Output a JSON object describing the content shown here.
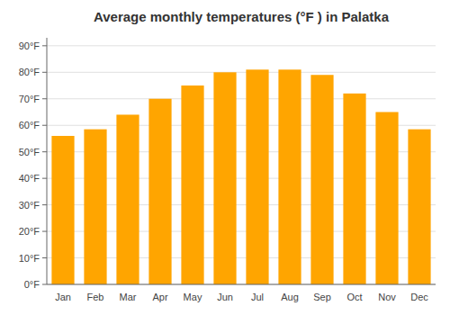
{
  "chart_data": {
    "type": "bar",
    "title": "Average monthly temperatures (°F ) in Palatka",
    "categories": [
      "Jan",
      "Feb",
      "Mar",
      "Apr",
      "May",
      "Jun",
      "Jul",
      "Aug",
      "Sep",
      "Oct",
      "Nov",
      "Dec"
    ],
    "values": [
      56,
      58.5,
      64,
      70,
      75,
      80,
      81,
      81,
      79,
      72,
      65,
      58.5
    ],
    "color": "#FFA500",
    "ylim": [
      0,
      93
    ],
    "yticks": [
      {
        "value": 0,
        "label": "0°F"
      },
      {
        "value": 10,
        "label": "10°F"
      },
      {
        "value": 20,
        "label": "20°F"
      },
      {
        "value": 30,
        "label": "30°F"
      },
      {
        "value": 40,
        "label": "40°F"
      },
      {
        "value": 50,
        "label": "50°F"
      },
      {
        "value": 60,
        "label": "60°F"
      },
      {
        "value": 70,
        "label": "70°F"
      },
      {
        "value": 80,
        "label": "80°F"
      },
      {
        "value": 90,
        "label": "90°F"
      }
    ],
    "grid": true
  }
}
